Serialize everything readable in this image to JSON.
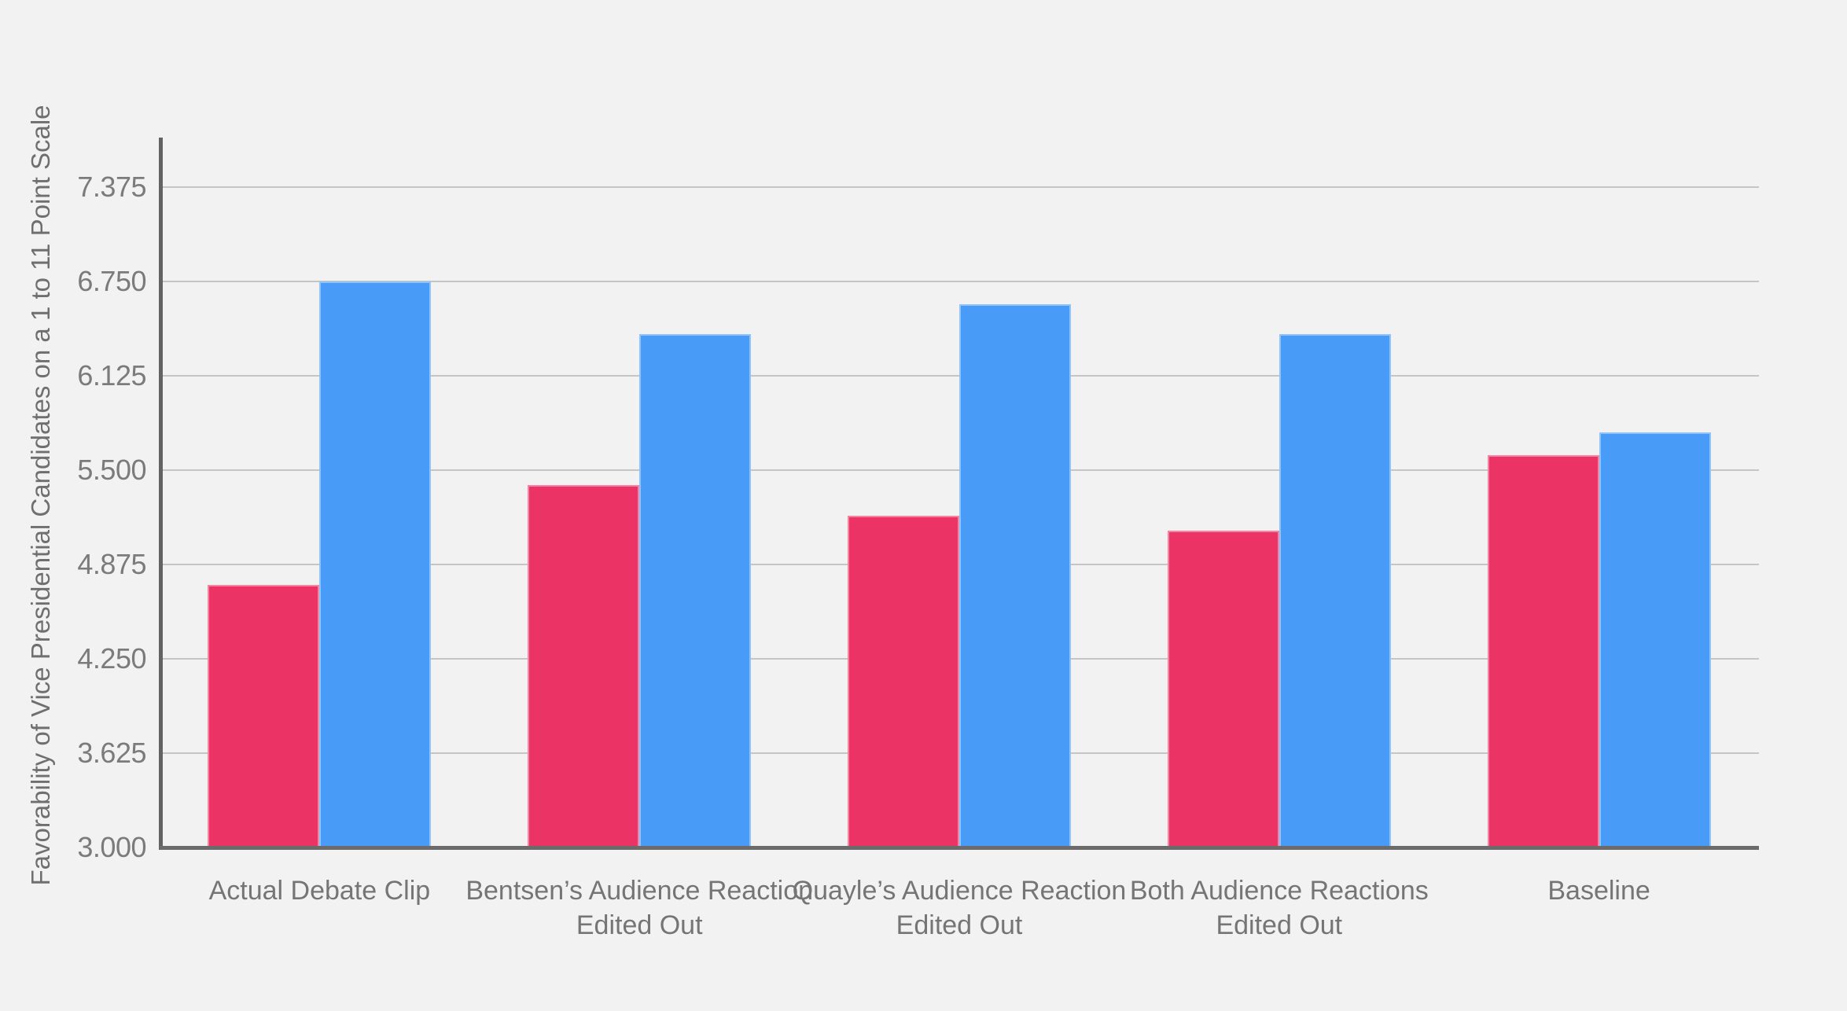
{
  "chart_data": {
    "type": "bar",
    "title": "",
    "xlabel": "",
    "ylabel": "Favorability of Vice Presidential Candidates on a 1 to 11 Point Scale",
    "categories": [
      "Actual Debate Clip",
      "Bentsen’s Audience Reaction\nEdited Out",
      "Quayle’s Audience Reaction\nEdited Out",
      "Both Audience Reactions\nEdited Out",
      "Baseline"
    ],
    "series": [
      {
        "name": "red",
        "color": "#EC3365",
        "values": [
          4.74,
          5.4,
          5.2,
          5.1,
          5.6
        ]
      },
      {
        "name": "blue",
        "color": "#489CF8",
        "values": [
          6.75,
          6.4,
          6.6,
          6.4,
          5.75
        ]
      }
    ],
    "yticks": [
      "3.000",
      "3.625",
      "4.250",
      "4.875",
      "5.500",
      "6.125",
      "6.750",
      "7.375"
    ],
    "ylim": [
      3.0,
      7.7
    ],
    "grid": true,
    "legend": "none",
    "colors": {
      "background": "#F2F2F2",
      "gridline": "#C5C5C5",
      "axis": "#636363",
      "tick_text": "#7B7B7B",
      "label_text": "#757575"
    }
  }
}
